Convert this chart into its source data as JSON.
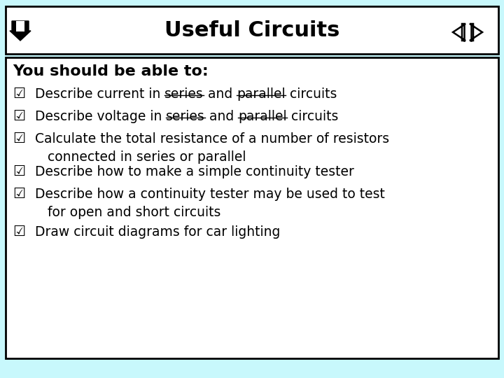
{
  "title": "Useful Circuits",
  "background_color": "#c8f8fc",
  "title_box_facecolor": "#ffffff",
  "content_box_facecolor": "#ffffff",
  "box_edgecolor": "#000000",
  "text_color": "#000000",
  "title_fontsize": 22,
  "heading_fontsize": 16,
  "bullet_fontsize": 13.5,
  "heading": "You should be able to:",
  "bullet_items": [
    {
      "segments": [
        {
          "t": "Describe current in ",
          "ul": false
        },
        {
          "t": "series",
          "ul": true
        },
        {
          "t": " and ",
          "ul": false
        },
        {
          "t": "parallel",
          "ul": true
        },
        {
          "t": " circuits",
          "ul": false
        }
      ],
      "continuation": null
    },
    {
      "segments": [
        {
          "t": "Describe voltage in ",
          "ul": false
        },
        {
          "t": "series",
          "ul": true
        },
        {
          "t": " and ",
          "ul": false
        },
        {
          "t": "parallel",
          "ul": true
        },
        {
          "t": " circuits",
          "ul": false
        }
      ],
      "continuation": null
    },
    {
      "segments": [
        {
          "t": "Calculate the total resistance of a number of resistors",
          "ul": false
        }
      ],
      "continuation": "connected in series or parallel"
    },
    {
      "segments": [
        {
          "t": "Describe how to make a simple continuity tester",
          "ul": false
        }
      ],
      "continuation": null
    },
    {
      "segments": [
        {
          "t": "Describe how a continuity tester may be used to test",
          "ul": false
        }
      ],
      "continuation": "for open and short circuits"
    },
    {
      "segments": [
        {
          "t": "Draw circuit diagrams for car lighting",
          "ul": false
        }
      ],
      "continuation": null
    }
  ]
}
